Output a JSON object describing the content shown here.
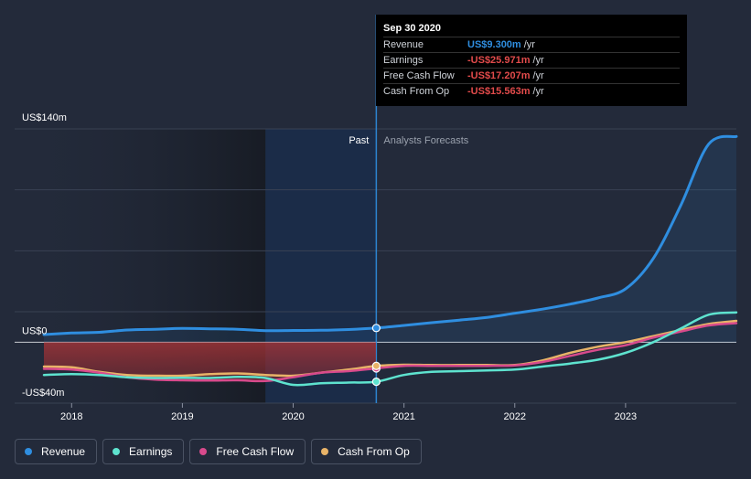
{
  "chart_data": {
    "type": "line",
    "title": "",
    "xlabel": "",
    "ylabel": "",
    "ylim": [
      -40,
      140
    ],
    "xlim": [
      2017.75,
      2024.0
    ],
    "y_tick_labels": [
      {
        "value": 140,
        "label": "US$140m"
      },
      {
        "value": 0,
        "label": "US$0"
      },
      {
        "value": -40,
        "label": "-US$40m"
      }
    ],
    "x_ticks": [
      {
        "value": 2018,
        "label": "2018"
      },
      {
        "value": 2019,
        "label": "2019"
      },
      {
        "value": 2020,
        "label": "2020"
      },
      {
        "value": 2021,
        "label": "2021"
      },
      {
        "value": 2022,
        "label": "2022"
      },
      {
        "value": 2023,
        "label": "2023"
      }
    ],
    "divider_x": 2020.75,
    "highlight_start_x": 2019.75,
    "past_label": "Past",
    "forecast_label": "Analysts Forecasts",
    "series": [
      {
        "name": "Revenue",
        "color": "#2f8ee0",
        "x": [
          2017.75,
          2018.0,
          2018.25,
          2018.5,
          2018.75,
          2019.0,
          2019.25,
          2019.5,
          2019.75,
          2020.0,
          2020.25,
          2020.5,
          2020.75,
          2021.0,
          2021.25,
          2021.5,
          2021.75,
          2022.0,
          2022.25,
          2022.5,
          2022.75,
          2023.0,
          2023.25,
          2023.5,
          2023.75,
          2024.0
        ],
        "values": [
          5,
          6,
          6.5,
          8,
          8.5,
          9,
          8.8,
          8.5,
          7.6,
          7.7,
          7.8,
          8.3,
          9.3,
          11,
          12.8,
          14.5,
          16.3,
          19,
          21.7,
          25,
          29,
          35,
          55,
          90,
          130,
          135
        ]
      },
      {
        "name": "Earnings",
        "color": "#5ee3cf",
        "x": [
          2017.75,
          2018.0,
          2018.25,
          2018.5,
          2018.75,
          2019.0,
          2019.25,
          2019.5,
          2019.75,
          2020.0,
          2020.25,
          2020.5,
          2020.75,
          2021.0,
          2021.25,
          2021.5,
          2021.75,
          2022.0,
          2022.25,
          2022.5,
          2022.75,
          2023.0,
          2023.25,
          2023.5,
          2023.75,
          2024.0
        ],
        "values": [
          -21.5,
          -21,
          -21.5,
          -23,
          -23.5,
          -23.3,
          -23.5,
          -22.8,
          -23.5,
          -28,
          -27,
          -26.5,
          -25.971,
          -21.5,
          -19.5,
          -19,
          -18.5,
          -18,
          -16,
          -14,
          -11.5,
          -7,
          0,
          9,
          18,
          19.5
        ]
      },
      {
        "name": "Free Cash Flow",
        "color": "#d84a8c",
        "x": [
          2017.75,
          2018.0,
          2018.25,
          2018.5,
          2018.75,
          2019.0,
          2019.25,
          2019.5,
          2019.75,
          2020.0,
          2020.25,
          2020.5,
          2020.75,
          2021.0,
          2021.25,
          2021.5,
          2021.75,
          2022.0,
          2022.25,
          2022.5,
          2022.75,
          2023.0,
          2023.25,
          2023.5,
          2023.75,
          2024.0
        ],
        "values": [
          -17.5,
          -18,
          -20,
          -23,
          -24.5,
          -25,
          -25.2,
          -25,
          -25.5,
          -23,
          -20,
          -19,
          -17.207,
          -15.5,
          -15.5,
          -15.5,
          -15.5,
          -15.2,
          -13,
          -9,
          -5,
          -2,
          3,
          7,
          11,
          12.5
        ]
      },
      {
        "name": "Cash From Op",
        "color": "#e8b368",
        "x": [
          2017.75,
          2018.0,
          2018.25,
          2018.5,
          2018.75,
          2019.0,
          2019.25,
          2019.5,
          2019.75,
          2020.0,
          2020.25,
          2020.5,
          2020.75,
          2021.0,
          2021.25,
          2021.5,
          2021.75,
          2022.0,
          2022.25,
          2022.5,
          2022.75,
          2023.0,
          2023.25,
          2023.5,
          2023.75,
          2024.0
        ],
        "values": [
          -16,
          -16.5,
          -19.5,
          -21.5,
          -22,
          -22,
          -21,
          -20.5,
          -21.5,
          -22,
          -20,
          -18,
          -15.563,
          -14.8,
          -15,
          -15,
          -15,
          -15,
          -12,
          -7,
          -3,
          0,
          4,
          8,
          12,
          14
        ]
      }
    ]
  },
  "tooltip": {
    "date": "Sep 30 2020",
    "rows": [
      {
        "name": "Revenue",
        "value": "US$9.300m",
        "unit": "/yr",
        "color": "#2f8ee0"
      },
      {
        "name": "Earnings",
        "value": "-US$25.971m",
        "unit": "/yr",
        "color": "#e24b4b"
      },
      {
        "name": "Free Cash Flow",
        "value": "-US$17.207m",
        "unit": "/yr",
        "color": "#e24b4b"
      },
      {
        "name": "Cash From Op",
        "value": "-US$15.563m",
        "unit": "/yr",
        "color": "#e24b4b"
      }
    ]
  },
  "legend": {
    "items": [
      {
        "label": "Revenue",
        "color": "#2f8ee0"
      },
      {
        "label": "Earnings",
        "color": "#5ee3cf"
      },
      {
        "label": "Free Cash Flow",
        "color": "#d84a8c"
      },
      {
        "label": "Cash From Op",
        "color": "#e8b368"
      }
    ]
  }
}
